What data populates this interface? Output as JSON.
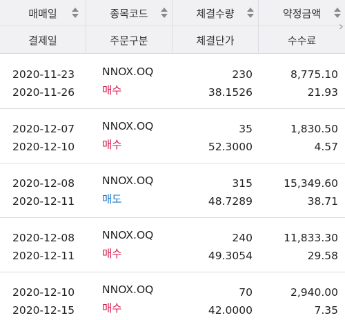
{
  "header": {
    "row1": [
      "매매일",
      "종목코드",
      "체결수량",
      "약정금액"
    ],
    "row2": [
      "결제일",
      "주문구분",
      "체결단가",
      "수수료"
    ]
  },
  "colors": {
    "buy": "#d3164a",
    "sell": "#1676c8"
  },
  "trades": [
    {
      "trade_date": "2020-11-23",
      "settle_date": "2020-11-26",
      "symbol": "NNOX.OQ",
      "order_type": "매수",
      "qty": "230",
      "price": "38.1526",
      "amount": "8,775.10",
      "fee": "21.93"
    },
    {
      "trade_date": "2020-12-07",
      "settle_date": "2020-12-10",
      "symbol": "NNOX.OQ",
      "order_type": "매수",
      "qty": "35",
      "price": "52.3000",
      "amount": "1,830.50",
      "fee": "4.57"
    },
    {
      "trade_date": "2020-12-08",
      "settle_date": "2020-12-11",
      "symbol": "NNOX.OQ",
      "order_type": "매도",
      "qty": "315",
      "price": "48.7289",
      "amount": "15,349.60",
      "fee": "38.71"
    },
    {
      "trade_date": "2020-12-08",
      "settle_date": "2020-12-11",
      "symbol": "NNOX.OQ",
      "order_type": "매수",
      "qty": "240",
      "price": "49.3054",
      "amount": "11,833.30",
      "fee": "29.58"
    },
    {
      "trade_date": "2020-12-10",
      "settle_date": "2020-12-15",
      "symbol": "NNOX.OQ",
      "order_type": "매수",
      "qty": "70",
      "price": "42.0000",
      "amount": "2,940.00",
      "fee": "7.35"
    }
  ]
}
